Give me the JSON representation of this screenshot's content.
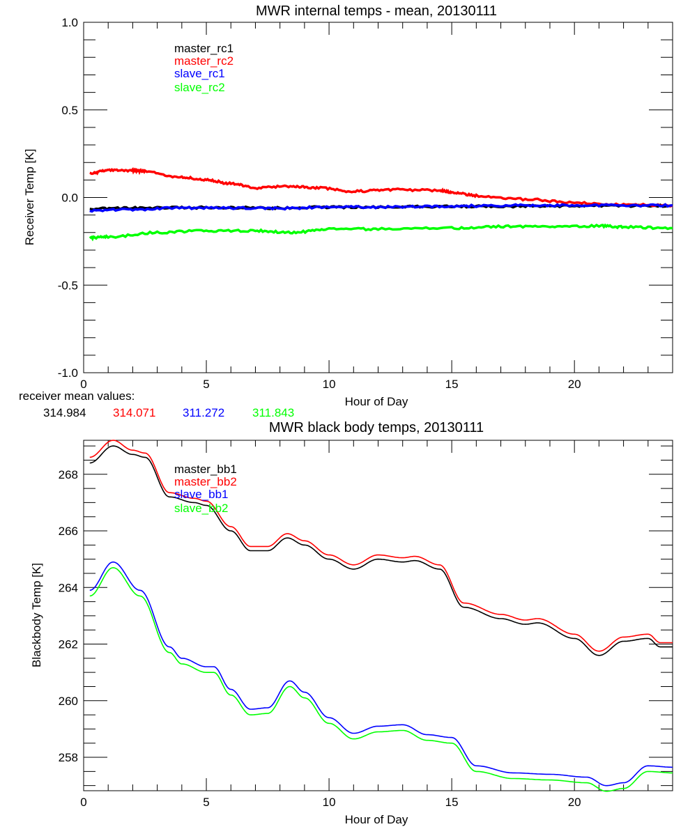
{
  "chart_data": [
    {
      "type": "line",
      "title": "MWR internal temps - mean, 20130111",
      "xlabel": "Hour of Day",
      "ylabel": "Receiver Temp [K]",
      "xlim": [
        0,
        24
      ],
      "ylim": [
        -1.0,
        1.0
      ],
      "xticks": [
        "0",
        "5",
        "10",
        "15",
        "20"
      ],
      "yticks": [
        "-1.0",
        "-0.5",
        "0.0",
        "0.5",
        "1.0"
      ],
      "legend_position": "top-left",
      "series": [
        {
          "name": "master_rc1",
          "color": "#000000",
          "x": [
            0.25,
            2,
            4,
            6,
            8,
            10,
            12,
            14,
            16,
            18,
            20,
            22,
            24
          ],
          "y": [
            -0.065,
            -0.06,
            -0.058,
            -0.057,
            -0.06,
            -0.055,
            -0.055,
            -0.052,
            -0.05,
            -0.05,
            -0.048,
            -0.047,
            -0.047
          ]
        },
        {
          "name": "master_rc2",
          "color": "#ff0000",
          "x": [
            0.25,
            1,
            2,
            2.5,
            4,
            5,
            6,
            7,
            8.5,
            9.5,
            11,
            12.5,
            14.5,
            15,
            16,
            18,
            20,
            22,
            24
          ],
          "y": [
            0.135,
            0.155,
            0.155,
            0.15,
            0.115,
            0.1,
            0.08,
            0.055,
            0.065,
            0.055,
            0.035,
            0.045,
            0.04,
            0.03,
            0.01,
            -0.01,
            -0.03,
            -0.04,
            -0.045
          ]
        },
        {
          "name": "slave_rc1",
          "color": "#0000ff",
          "x": [
            0.25,
            2,
            4,
            6,
            8,
            10,
            12,
            14,
            16,
            18,
            20,
            22,
            24
          ],
          "y": [
            -0.075,
            -0.068,
            -0.06,
            -0.06,
            -0.062,
            -0.055,
            -0.055,
            -0.052,
            -0.048,
            -0.045,
            -0.045,
            -0.045,
            -0.045
          ]
        },
        {
          "name": "slave_rc2",
          "color": "#00ff00",
          "x": [
            0.25,
            1,
            3,
            5,
            7,
            8.5,
            10,
            12,
            15,
            17,
            19,
            21,
            22,
            24
          ],
          "y": [
            -0.23,
            -0.225,
            -0.2,
            -0.19,
            -0.19,
            -0.2,
            -0.18,
            -0.18,
            -0.175,
            -0.165,
            -0.168,
            -0.162,
            -0.168,
            -0.175
          ]
        }
      ],
      "annotation": {
        "label": "receiver mean values:",
        "values": [
          {
            "text": "314.984",
            "color": "#000000"
          },
          {
            "text": "314.071",
            "color": "#ff0000"
          },
          {
            "text": "311.272",
            "color": "#0000ff"
          },
          {
            "text": "311.843",
            "color": "#00ff00"
          }
        ]
      }
    },
    {
      "type": "line",
      "title": "MWR black body temps, 20130111",
      "xlabel": "Hour of Day",
      "ylabel": "Blackbody Temp [K]",
      "xlim": [
        0,
        24
      ],
      "ylim": [
        256.82,
        269.2
      ],
      "xticks": [
        "0",
        "5",
        "10",
        "15",
        "20"
      ],
      "yticks": [
        "258",
        "260",
        "262",
        "264",
        "266",
        "268"
      ],
      "legend_position": "top-left",
      "series": [
        {
          "name": "master_bb1",
          "color": "#000000",
          "x": [
            0.25,
            1.2,
            2,
            2.5,
            3.5,
            4.5,
            5,
            6,
            6.8,
            7.5,
            8.3,
            9,
            10,
            11,
            12,
            13,
            13.5,
            14.5,
            15.5,
            17,
            18,
            18.5,
            20,
            21,
            22,
            23,
            23.5,
            24
          ],
          "y": [
            268.4,
            269.0,
            268.7,
            268.6,
            267.2,
            267.0,
            266.9,
            266.0,
            265.3,
            265.3,
            265.75,
            265.5,
            265.0,
            264.65,
            265.0,
            264.9,
            264.95,
            264.65,
            263.3,
            262.9,
            262.7,
            262.75,
            262.2,
            261.6,
            262.1,
            262.2,
            261.9,
            261.9
          ]
        },
        {
          "name": "master_bb2",
          "color": "#ff0000",
          "x": [
            0.25,
            1.2,
            2,
            2.5,
            3.5,
            4.5,
            5,
            6,
            6.8,
            7.5,
            8.3,
            9,
            10,
            11,
            12,
            13,
            13.5,
            14.5,
            15.5,
            17,
            18,
            18.5,
            20,
            21,
            22,
            23,
            23.5,
            24
          ],
          "y": [
            268.6,
            269.2,
            268.85,
            268.75,
            267.35,
            267.15,
            267.05,
            266.15,
            265.45,
            265.45,
            265.9,
            265.65,
            265.15,
            264.8,
            265.15,
            265.05,
            265.1,
            264.8,
            263.45,
            263.05,
            262.85,
            262.9,
            262.35,
            261.75,
            262.25,
            262.35,
            262.05,
            262.05
          ]
        },
        {
          "name": "slave_bb1",
          "color": "#0000ff",
          "x": [
            0.25,
            1.2,
            2.3,
            3.5,
            4,
            5,
            5.3,
            6,
            6.8,
            7.5,
            8.4,
            9,
            10,
            11,
            12,
            13,
            14,
            15,
            16,
            17.5,
            19,
            20.5,
            21.3,
            22,
            23,
            24
          ],
          "y": [
            263.9,
            264.9,
            263.9,
            261.9,
            261.5,
            261.2,
            261.2,
            260.4,
            259.7,
            259.75,
            260.7,
            260.3,
            259.4,
            258.85,
            259.1,
            259.15,
            258.8,
            258.7,
            257.7,
            257.45,
            257.4,
            257.3,
            257.0,
            257.1,
            257.7,
            257.65
          ]
        },
        {
          "name": "slave_bb2",
          "color": "#00ff00",
          "x": [
            0.25,
            1.2,
            2.3,
            3.5,
            4,
            5,
            5.3,
            6,
            6.8,
            7.5,
            8.4,
            9,
            10,
            11,
            12,
            13,
            14,
            15,
            16,
            17.5,
            19,
            20.5,
            21.3,
            22,
            23,
            24
          ],
          "y": [
            263.7,
            264.7,
            263.7,
            261.7,
            261.3,
            261.0,
            261.0,
            260.2,
            259.5,
            259.55,
            260.5,
            260.1,
            259.2,
            258.65,
            258.9,
            258.95,
            258.6,
            258.5,
            257.5,
            257.25,
            257.2,
            257.1,
            256.8,
            256.9,
            257.5,
            257.45
          ]
        }
      ]
    }
  ]
}
